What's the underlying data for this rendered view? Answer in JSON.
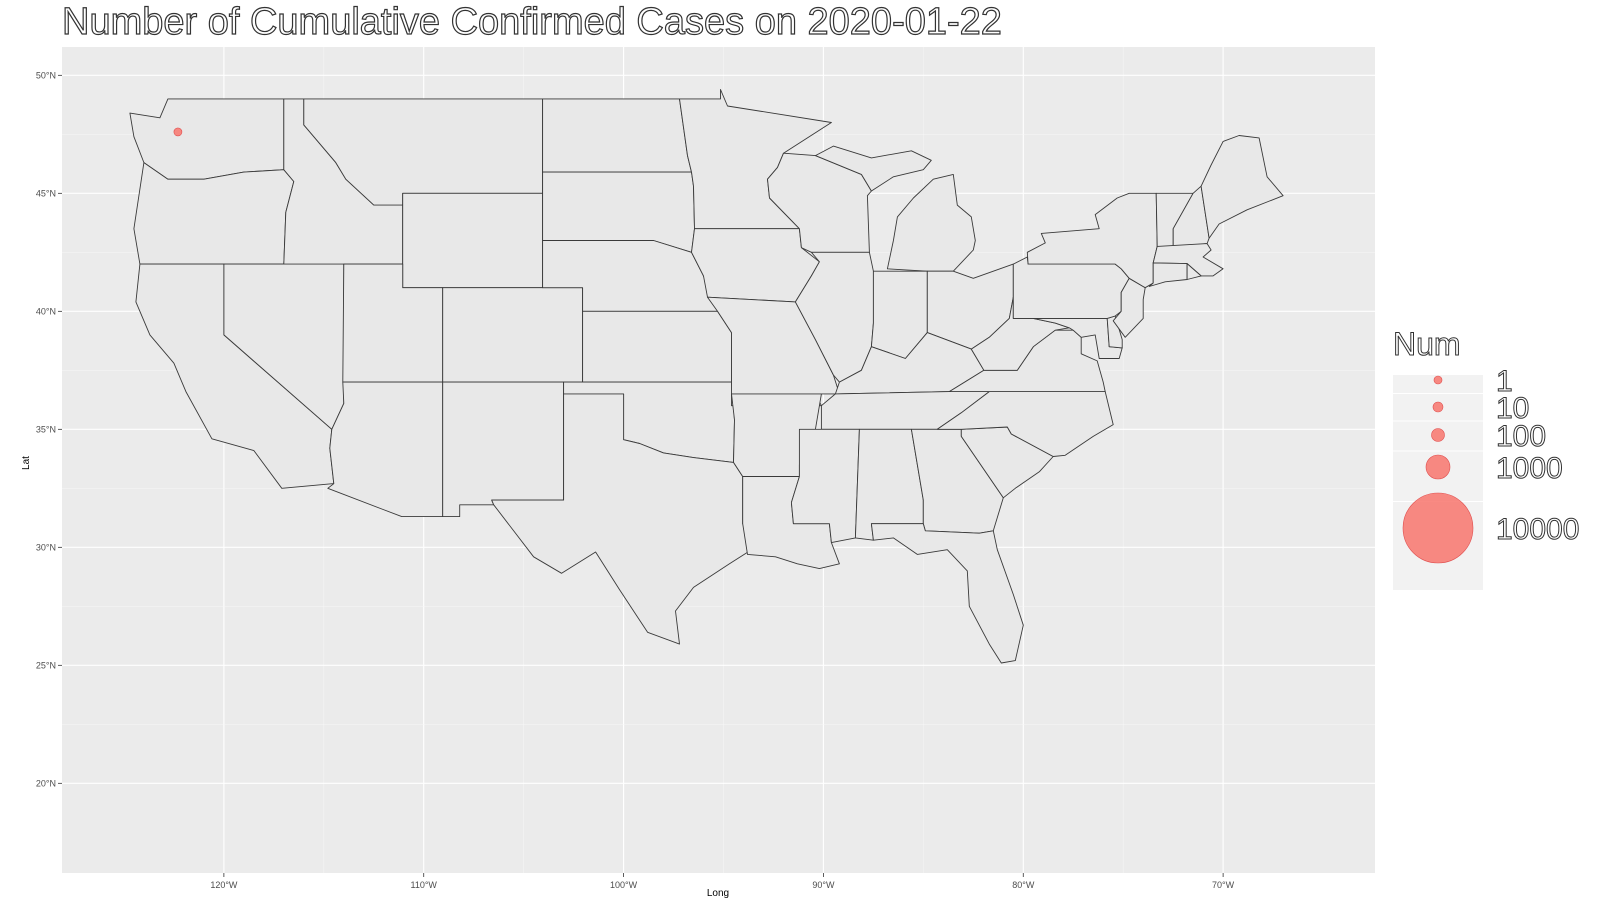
{
  "title": "Number of Cumulative Confirmed Cases on 2020-01-22",
  "colors": {
    "panel": "#ebebeb",
    "grid": "#ffffff",
    "state_fill": "#e8e8e8",
    "state_stroke": "#3a3a3a",
    "point": "#f8766d"
  },
  "chart_data": {
    "type": "map",
    "xlabel": "Long",
    "ylabel": "Lat",
    "xlim": [
      -128.1,
      -62.4
    ],
    "ylim": [
      16.2,
      51.2
    ],
    "x_ticks": [
      {
        "value": -120,
        "label": "120°W"
      },
      {
        "value": -110,
        "label": "110°W"
      },
      {
        "value": -100,
        "label": "100°W"
      },
      {
        "value": -90,
        "label": "90°W"
      },
      {
        "value": -80,
        "label": "80°W"
      },
      {
        "value": -70,
        "label": "70°W"
      }
    ],
    "y_ticks": [
      {
        "value": 20,
        "label": "20°N"
      },
      {
        "value": 25,
        "label": "25°N"
      },
      {
        "value": 30,
        "label": "30°N"
      },
      {
        "value": 35,
        "label": "35°N"
      },
      {
        "value": 40,
        "label": "40°N"
      },
      {
        "value": 45,
        "label": "45°N"
      },
      {
        "value": 50,
        "label": "50°N"
      }
    ],
    "points": [
      {
        "long": -122.3,
        "lat": 47.6,
        "num": 1
      }
    ],
    "legend": {
      "title": "Num",
      "entries": [
        {
          "value": 1,
          "label": "1"
        },
        {
          "value": 10,
          "label": "10"
        },
        {
          "value": 100,
          "label": "100"
        },
        {
          "value": 1000,
          "label": "1000"
        },
        {
          "value": 10000,
          "label": "10000"
        }
      ]
    },
    "grid": true
  }
}
